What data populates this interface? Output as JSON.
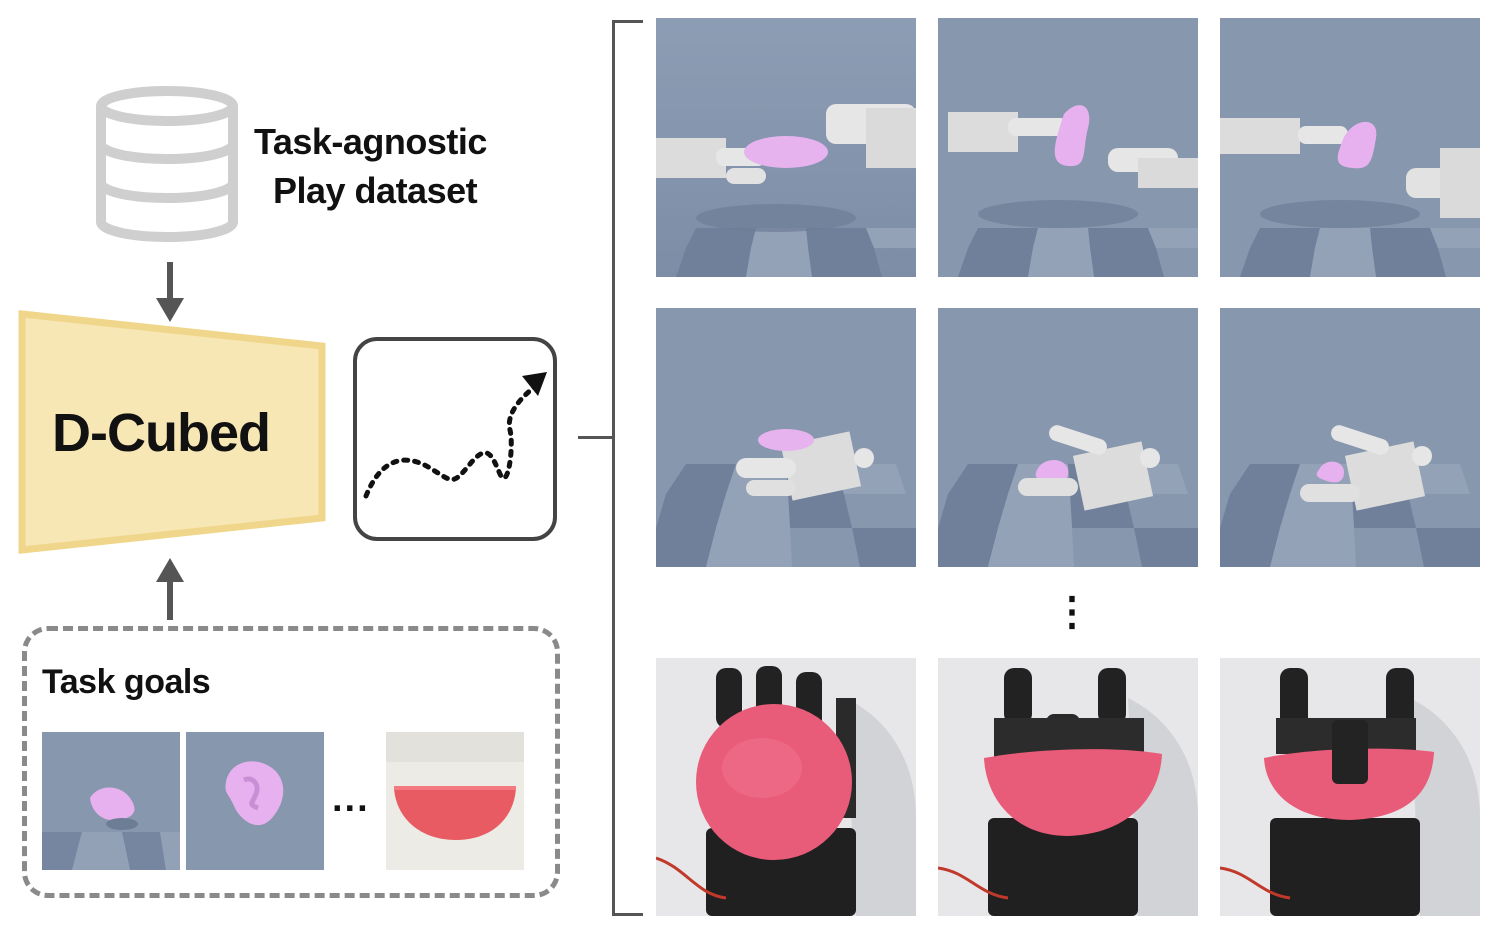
{
  "dataset": {
    "label_line1": "Task-agnostic",
    "label_line2": "Play dataset",
    "icon": "database-icon"
  },
  "model": {
    "name": "D-Cubed",
    "fill_color": "#f7e7b5",
    "border_color": "#f0d68a"
  },
  "trajectory": {
    "icon": "dotted-trajectory-arrow-icon"
  },
  "goals": {
    "title": "Task goals",
    "ellipsis": "..."
  },
  "grid": {
    "vertical_ellipsis": "⋮",
    "sim_background": "#8797ad",
    "dough_color": "#e2a9ec",
    "real_dough_color": "#e85b79"
  }
}
